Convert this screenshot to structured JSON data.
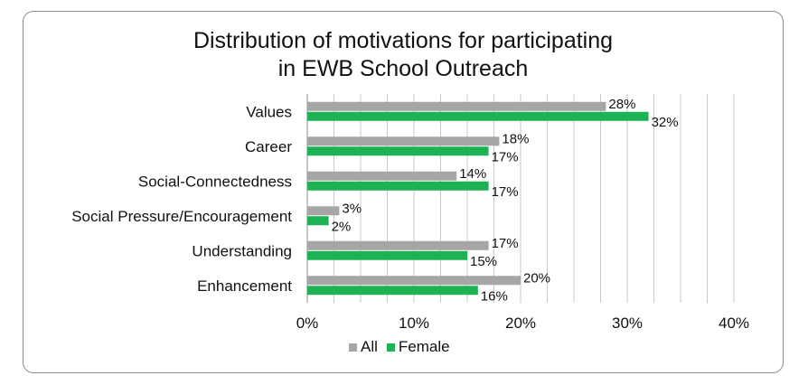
{
  "chart_data": {
    "type": "bar",
    "orientation": "horizontal",
    "title_lines": [
      "Distribution of motivations for participating",
      "in EWB School Outreach"
    ],
    "categories": [
      "Values",
      "Career",
      "Social-Connectedness",
      "Social Pressure/Encouragement",
      "Understanding",
      "Enhancement"
    ],
    "series": [
      {
        "name": "All",
        "color": "#a6a6a6",
        "values": [
          28,
          18,
          14,
          3,
          17,
          20
        ],
        "labels": [
          "28%",
          "18%",
          "14%",
          "3%",
          "17%",
          "20%"
        ]
      },
      {
        "name": "Female",
        "color": "#1db254",
        "values": [
          32,
          17,
          17,
          2,
          15,
          16
        ],
        "labels": [
          "32%",
          "17%",
          "17%",
          "2%",
          "15%",
          "16%"
        ]
      }
    ],
    "xlim": [
      0,
      40
    ],
    "xticks": [
      0,
      10,
      20,
      30,
      40
    ],
    "xtick_labels": [
      "0%",
      "10%",
      "20%",
      "30%",
      "40%"
    ],
    "grid": "vertical",
    "legend": "bottom"
  }
}
